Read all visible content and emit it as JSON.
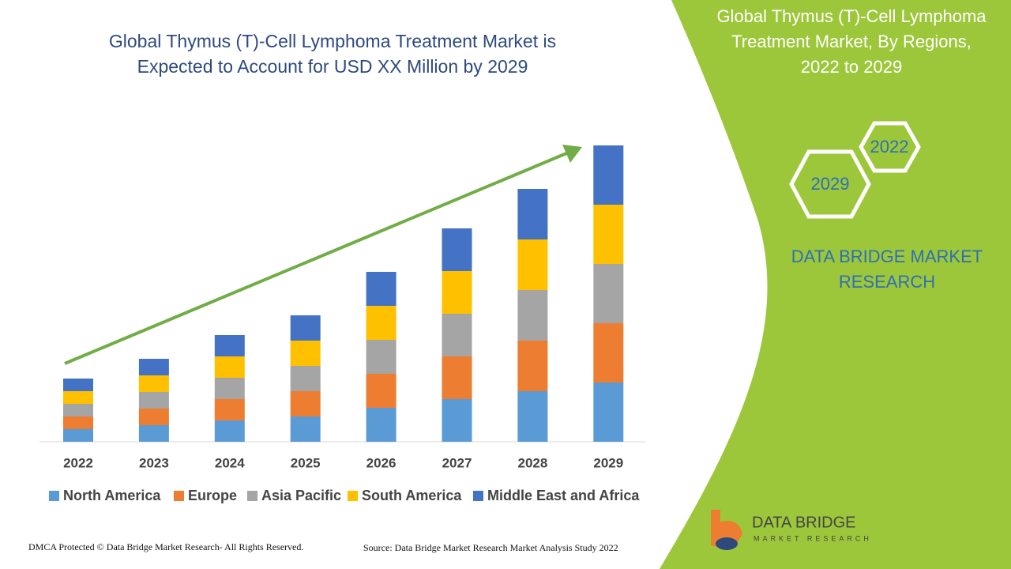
{
  "chart_data": {
    "type": "bar",
    "stacked": true,
    "title_lines": [
      "Global Thymus (T)-Cell Lymphoma Treatment Market is",
      "Expected to Account for USD XX Million by 2029"
    ],
    "categories": [
      "2022",
      "2023",
      "2024",
      "2025",
      "2026",
      "2027",
      "2028",
      "2029"
    ],
    "series": [
      {
        "name": "North America",
        "color": "#5b9bd5",
        "values": [
          16,
          21,
          27,
          32,
          43,
          54,
          64,
          75
        ]
      },
      {
        "name": "Europe",
        "color": "#ed7d31",
        "values": [
          16,
          21,
          27,
          32,
          43,
          54,
          64,
          75
        ]
      },
      {
        "name": "Asia Pacific",
        "color": "#a5a5a5",
        "values": [
          16,
          21,
          27,
          32,
          43,
          54,
          64,
          75
        ]
      },
      {
        "name": "South America",
        "color": "#ffc000",
        "values": [
          16,
          21,
          27,
          32,
          43,
          54,
          64,
          75
        ]
      },
      {
        "name": "Middle East and Africa",
        "color": "#4472c4",
        "values": [
          16,
          21,
          27,
          32,
          43,
          54,
          64,
          75
        ]
      }
    ]
  },
  "panel": {
    "title_lines": [
      "Global Thymus (T)-Cell Lymphoma",
      "Treatment Market, By Regions,",
      "2022 to 2029"
    ],
    "hex_a": "2022",
    "hex_b": "2029",
    "brand_lines": [
      "DATA BRIDGE MARKET",
      "RESEARCH"
    ]
  },
  "logo": {
    "name": "DATA BRIDGE",
    "sub": "MARKET RESEARCH"
  },
  "footer": {
    "left": "DMCA Protected © Data Bridge Market Research- All Rights Reserved.",
    "right": "Source: Data Bridge Market Research Market Analysis Study 2022"
  }
}
